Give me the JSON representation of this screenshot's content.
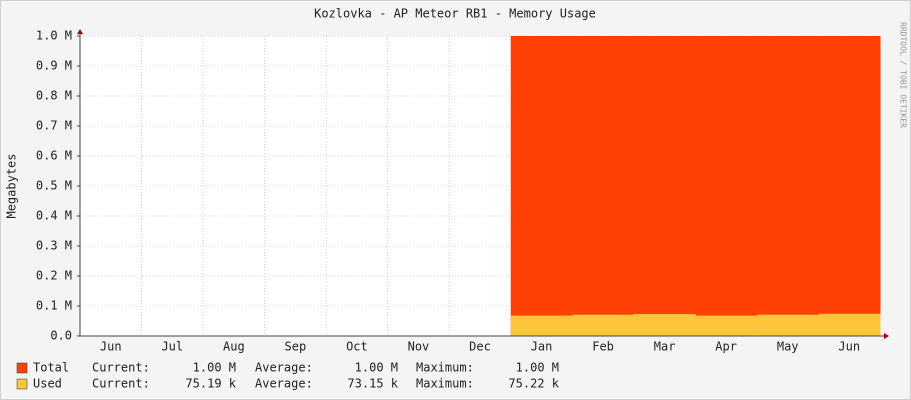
{
  "chart_data": {
    "type": "area",
    "title": "Kozlovka - AP Meteor RB1 - Memory Usage",
    "y_label": "Megabytes",
    "watermark": "RRDTOOL / TOBI OETIKER",
    "categories": [
      "Jun",
      "Jul",
      "Aug",
      "Sep",
      "Oct",
      "Nov",
      "Dec",
      "Jan",
      "Feb",
      "Mar",
      "Apr",
      "May",
      "Jun"
    ],
    "series": [
      {
        "name": "Total",
        "color": "#ff4105",
        "values": [
          null,
          null,
          null,
          null,
          null,
          null,
          null,
          1000000,
          1000000,
          1000000,
          1000000,
          1000000,
          1000000
        ],
        "stats": [
          {
            "label": "Current:",
            "value": "1.00 M"
          },
          {
            "label": "Average:",
            "value": "1.00 M"
          },
          {
            "label": "Maximum:",
            "value": "1.00 M"
          }
        ]
      },
      {
        "name": "Used",
        "color": "#fdc53c",
        "values": [
          null,
          null,
          null,
          null,
          null,
          null,
          null,
          68000,
          71000,
          73000,
          68000,
          71000,
          74000
        ],
        "stats": [
          {
            "label": "Current:",
            "value": "75.19 k"
          },
          {
            "label": "Average:",
            "value": "73.15 k"
          },
          {
            "label": "Maximum:",
            "value": "75.22 k"
          }
        ]
      }
    ],
    "ylim": [
      0,
      1000000
    ],
    "yticks": [
      {
        "value": 0,
        "label": "0.0"
      },
      {
        "value": 100000,
        "label": "0.1 M"
      },
      {
        "value": 200000,
        "label": "0.2 M"
      },
      {
        "value": 300000,
        "label": "0.3 M"
      },
      {
        "value": 400000,
        "label": "0.4 M"
      },
      {
        "value": 500000,
        "label": "0.5 M"
      },
      {
        "value": 600000,
        "label": "0.6 M"
      },
      {
        "value": 700000,
        "label": "0.7 M"
      },
      {
        "value": 800000,
        "label": "0.8 M"
      },
      {
        "value": 900000,
        "label": "0.9 M"
      },
      {
        "value": 1000000,
        "label": "1.0 M"
      }
    ],
    "grid": true
  }
}
